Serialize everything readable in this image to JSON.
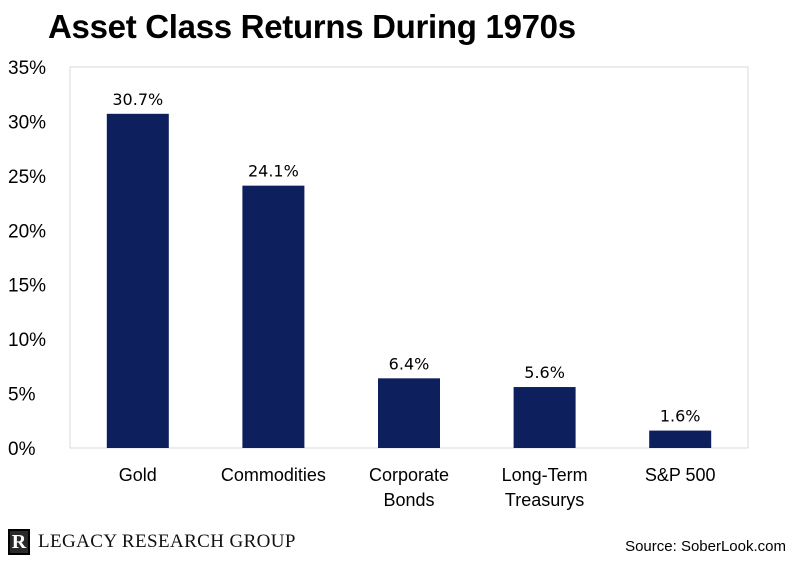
{
  "title": "Asset Class Returns During 1970s",
  "chart_data": {
    "type": "bar",
    "title": "Asset Class Returns During 1970s",
    "categories": [
      [
        "Gold"
      ],
      [
        "Commodities"
      ],
      [
        "Corporate",
        "Bonds"
      ],
      [
        "Long-Term",
        "Treasurys"
      ],
      [
        "S&P 500"
      ]
    ],
    "values": [
      30.7,
      24.1,
      6.4,
      5.6,
      1.6
    ],
    "data_labels": [
      "30.7%",
      "24.1%",
      "6.4%",
      "5.6%",
      "1.6%"
    ],
    "ylim": [
      0,
      35
    ],
    "yticks": [
      0,
      5,
      10,
      15,
      20,
      25,
      30,
      35
    ],
    "ytick_labels": [
      "0%",
      "5%",
      "10%",
      "15%",
      "20%",
      "25%",
      "30%",
      "35%"
    ],
    "xlabel": "",
    "ylabel": "",
    "grid": false,
    "bar_color": "#0d1f5c"
  },
  "footer": {
    "logo_mark": "R",
    "logo_text": "LEGACY RESEARCH GROUP",
    "source": "Source: SoberLook.com"
  }
}
